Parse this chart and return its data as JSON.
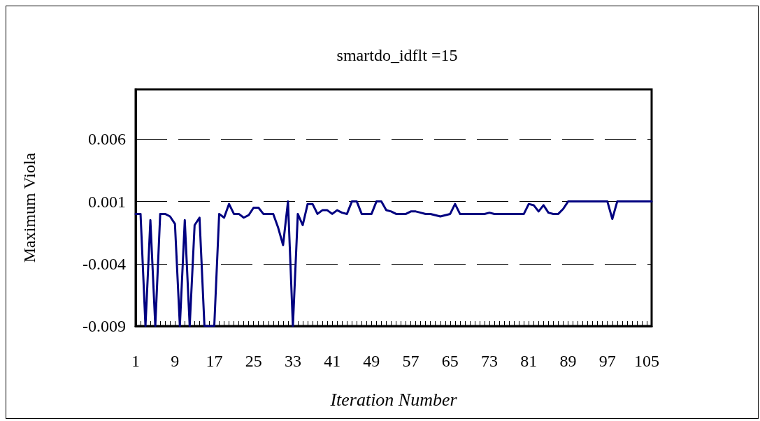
{
  "chart_data": {
    "type": "line",
    "title": "smartdo_idflt =15",
    "xlabel": "Iteration Number",
    "ylabel": "Maximum Viola",
    "categories": [
      "1",
      null,
      null,
      null,
      null,
      null,
      null,
      null,
      "9",
      null,
      null,
      null,
      null,
      null,
      null,
      null,
      "17",
      null,
      null,
      null,
      null,
      null,
      null,
      null,
      "25",
      null,
      null,
      null,
      null,
      null,
      null,
      null,
      "33",
      null,
      null,
      null,
      null,
      null,
      null,
      null,
      "41",
      null,
      null,
      null,
      null,
      null,
      null,
      null,
      "49",
      null,
      null,
      null,
      null,
      null,
      null,
      null,
      "57",
      null,
      null,
      null,
      null,
      null,
      null,
      null,
      "65",
      null,
      null,
      null,
      null,
      null,
      null,
      null,
      "73",
      null,
      null,
      null,
      null,
      null,
      null,
      null,
      "81",
      null,
      null,
      null,
      null,
      null,
      null,
      null,
      "89",
      null,
      null,
      null,
      null,
      null,
      null,
      null,
      "97",
      null,
      null,
      null,
      null,
      null,
      null,
      null,
      "105",
      null
    ],
    "series": [
      {
        "color": "#000080",
        "values": [
          0,
          0,
          -0.009,
          -0.0005,
          -0.009,
          0,
          0,
          -0.0002,
          -0.0008,
          -0.009,
          -0.0005,
          -0.009,
          -0.0009,
          -0.0003,
          -0.009,
          -0.009,
          -0.009,
          0,
          -0.0003,
          0.0008,
          0,
          0,
          -0.0003,
          -0.0001,
          0.0005,
          0.0005,
          0,
          0,
          0,
          -0.0011,
          -0.0025,
          0.001,
          -0.009,
          0,
          -0.0009,
          0.0008,
          0.0008,
          0,
          0.0003,
          0.0003,
          0,
          0.0003,
          0.0001,
          0,
          0.001,
          0.001,
          0,
          0,
          0,
          0.001,
          0.001,
          0.0003,
          0.0002,
          0,
          0,
          0,
          0.0002,
          0.0002,
          0.0001,
          0,
          0,
          -0.0001,
          -0.0002,
          -0.0001,
          0,
          0.0008,
          0,
          0,
          0,
          0,
          0,
          0,
          0.0001,
          0,
          0,
          0,
          0,
          0,
          0,
          0,
          0.0008,
          0.0007,
          0.0002,
          0.0007,
          0.0001,
          0,
          0,
          0.0004,
          0.001,
          0.001,
          0.001,
          0.001,
          0.001,
          0.001,
          0.001,
          0.001,
          0.001,
          -0.0004,
          0.001,
          0.001,
          0.001,
          0.001,
          0.001,
          0.001,
          0.001,
          0.001
        ]
      }
    ],
    "ylim": [
      -0.009,
      0.01
    ],
    "yticks": [
      -0.009,
      -0.004,
      0.001,
      0.006
    ],
    "grid": "y",
    "marker": "none",
    "line_style": "solid"
  }
}
